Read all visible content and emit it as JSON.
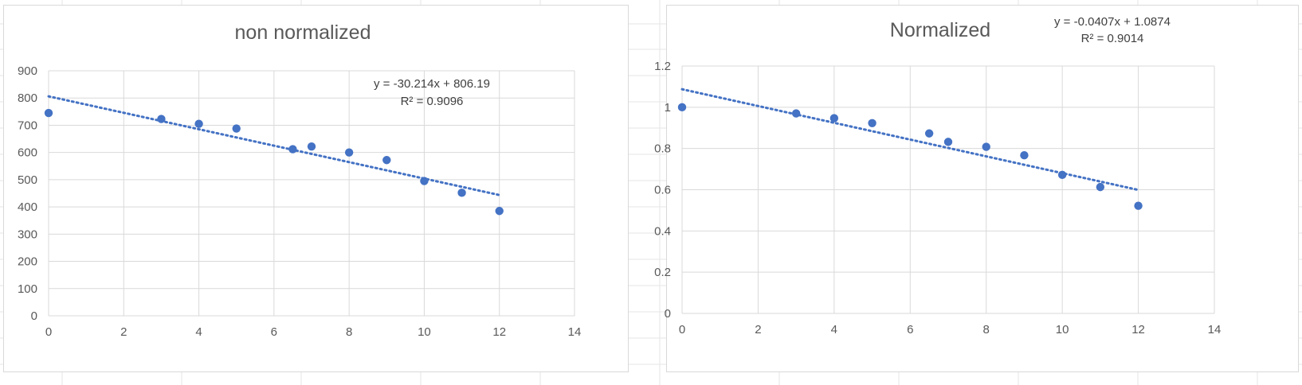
{
  "chart_data": [
    {
      "type": "scatter",
      "title": "non normalized",
      "xlabel": "",
      "ylabel": "",
      "xlim": [
        0,
        14
      ],
      "ylim": [
        0,
        900
      ],
      "xticks": [
        0,
        2,
        4,
        6,
        8,
        10,
        12,
        14
      ],
      "yticks": [
        0,
        100,
        200,
        300,
        400,
        500,
        600,
        700,
        800,
        900
      ],
      "grid": true,
      "legend": "none",
      "series": [
        {
          "color": "#4472c4",
          "x": [
            0,
            3,
            4,
            5,
            6.5,
            7,
            8,
            9,
            10,
            11,
            12
          ],
          "y": [
            745,
            723,
            705,
            688,
            612,
            622,
            600,
            572,
            495,
            452,
            385
          ]
        }
      ],
      "trendline": {
        "type": "linear",
        "slope": -30.214,
        "intercept": 806.19,
        "x_range": [
          0,
          12
        ],
        "equation": "y = -30.214x + 806.19",
        "r_squared": "R² = 0.9096"
      }
    },
    {
      "type": "scatter",
      "title": "Normalized",
      "xlabel": "",
      "ylabel": "",
      "xlim": [
        0,
        14
      ],
      "ylim": [
        0,
        1.2
      ],
      "xticks": [
        0,
        2,
        4,
        6,
        8,
        10,
        12,
        14
      ],
      "yticks": [
        0,
        0.2,
        0.4,
        0.6,
        0.8,
        1,
        1.2
      ],
      "grid": true,
      "legend": "none",
      "series": [
        {
          "color": "#4472c4",
          "x": [
            0,
            3,
            4,
            5,
            6.5,
            7,
            8,
            9,
            10,
            11,
            12
          ],
          "y": [
            1.0,
            0.97,
            0.947,
            0.923,
            0.873,
            0.832,
            0.808,
            0.767,
            0.672,
            0.613,
            0.522
          ]
        }
      ],
      "trendline": {
        "type": "linear",
        "slope": -0.0407,
        "intercept": 1.0874,
        "x_range": [
          0,
          12
        ],
        "equation": "y = -0.0407x + 1.0874",
        "r_squared": "R² = 0.9014"
      }
    }
  ]
}
